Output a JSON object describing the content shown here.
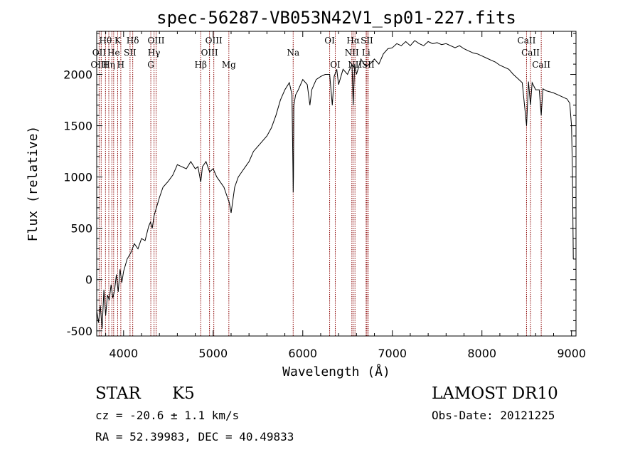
{
  "chart_data": {
    "type": "line",
    "title": "spec-56287-VB053N42V1_sp01-227.fits",
    "xlabel": "Wavelength (Å)",
    "ylabel": "Flux (relative)",
    "xlim": [
      3700,
      9050
    ],
    "ylim": [
      -550,
      2420
    ],
    "x_ticks": [
      4000,
      5000,
      6000,
      7000,
      8000,
      9000
    ],
    "y_ticks": [
      -500,
      0,
      500,
      1000,
      1500,
      2000
    ],
    "grid": false,
    "series": [
      {
        "color": "#000000",
        "x": [
          3700,
          3720,
          3740,
          3760,
          3780,
          3800,
          3820,
          3840,
          3860,
          3880,
          3900,
          3920,
          3940,
          3960,
          3980,
          4000,
          4040,
          4080,
          4120,
          4160,
          4200,
          4240,
          4280,
          4300,
          4320,
          4340,
          4360,
          4400,
          4440,
          4500,
          4550,
          4600,
          4650,
          4700,
          4750,
          4800,
          4830,
          4861,
          4880,
          4920,
          4960,
          5000,
          5040,
          5080,
          5120,
          5160,
          5180,
          5200,
          5240,
          5280,
          5320,
          5360,
          5400,
          5450,
          5500,
          5550,
          5600,
          5650,
          5700,
          5750,
          5800,
          5850,
          5880,
          5890,
          5893,
          5896,
          5900,
          5920,
          5950,
          6000,
          6050,
          6080,
          6100,
          6150,
          6200,
          6250,
          6300,
          6330,
          6350,
          6380,
          6400,
          6450,
          6500,
          6550,
          6563,
          6580,
          6600,
          6650,
          6700,
          6750,
          6800,
          6850,
          6900,
          6950,
          7000,
          7050,
          7100,
          7150,
          7200,
          7250,
          7300,
          7350,
          7400,
          7450,
          7500,
          7550,
          7600,
          7650,
          7700,
          7750,
          7800,
          7850,
          7900,
          7950,
          8000,
          8050,
          8100,
          8150,
          8200,
          8250,
          8300,
          8350,
          8400,
          8450,
          8498,
          8520,
          8542,
          8560,
          8600,
          8640,
          8662,
          8680,
          8720,
          8760,
          8800,
          8850,
          8900,
          8950,
          8980,
          9000,
          9010,
          9020
        ],
        "y": [
          -300,
          -420,
          -250,
          -480,
          -100,
          -350,
          -150,
          -200,
          -50,
          -180,
          -100,
          50,
          -120,
          100,
          -30,
          80,
          200,
          260,
          350,
          300,
          400,
          380,
          520,
          560,
          500,
          620,
          680,
          800,
          900,
          960,
          1020,
          1120,
          1100,
          1080,
          1150,
          1080,
          1100,
          950,
          1100,
          1150,
          1050,
          1080,
          1000,
          950,
          900,
          800,
          750,
          650,
          900,
          1000,
          1050,
          1100,
          1150,
          1250,
          1300,
          1350,
          1400,
          1480,
          1600,
          1750,
          1850,
          1920,
          1800,
          1100,
          850,
          1000,
          1700,
          1800,
          1850,
          1950,
          1900,
          1700,
          1850,
          1950,
          1980,
          2000,
          2000,
          1700,
          1980,
          2050,
          1900,
          2050,
          2000,
          2100,
          1700,
          2100,
          2000,
          2150,
          2080,
          2100,
          2150,
          2100,
          2200,
          2250,
          2260,
          2300,
          2280,
          2320,
          2280,
          2330,
          2300,
          2280,
          2320,
          2300,
          2310,
          2290,
          2300,
          2280,
          2260,
          2280,
          2250,
          2230,
          2210,
          2200,
          2180,
          2160,
          2140,
          2120,
          2090,
          2070,
          2050,
          2000,
          1960,
          1920,
          1500,
          1930,
          1700,
          1920,
          1850,
          1850,
          1600,
          1860,
          1840,
          1830,
          1820,
          1800,
          1780,
          1760,
          1720,
          1500,
          1050,
          200
        ]
      }
    ],
    "line_labels": [
      {
        "text": "Hθ",
        "x": 3798,
        "row": 1
      },
      {
        "text": "OII",
        "x": 3727,
        "row": 2
      },
      {
        "text": "OIII",
        "x": 3727,
        "row": 3
      },
      {
        "text": "K",
        "x": 3934,
        "row": 1
      },
      {
        "text": "He",
        "x": 3889,
        "row": 2
      },
      {
        "text": "Hη",
        "x": 3835,
        "row": 3
      },
      {
        "text": "Hδ",
        "x": 4102,
        "row": 1
      },
      {
        "text": "SII",
        "x": 4072,
        "row": 2
      },
      {
        "text": "H",
        "x": 3969,
        "row": 3
      },
      {
        "text": "OIII",
        "x": 4363,
        "row": 1
      },
      {
        "text": "Hγ",
        "x": 4340,
        "row": 2
      },
      {
        "text": "G",
        "x": 4304,
        "row": 3
      },
      {
        "text": "OIII",
        "x": 5007,
        "row": 1
      },
      {
        "text": "OIII",
        "x": 4959,
        "row": 2
      },
      {
        "text": "Hβ",
        "x": 4861,
        "row": 3
      },
      {
        "text": "Mg",
        "x": 5175,
        "row": 3
      },
      {
        "text": "Na",
        "x": 5893,
        "row": 2
      },
      {
        "text": "OI",
        "x": 6300,
        "row": 1
      },
      {
        "text": "OI",
        "x": 6363,
        "row": 3
      },
      {
        "text": "Hα",
        "x": 6563,
        "row": 1
      },
      {
        "text": "SII",
        "x": 6716,
        "row": 1
      },
      {
        "text": "NII",
        "x": 6548,
        "row": 2
      },
      {
        "text": "Li",
        "x": 6707,
        "row": 2
      },
      {
        "text": "NII",
        "x": 6583,
        "row": 3
      },
      {
        "text": "SII",
        "x": 6731,
        "row": 3
      },
      {
        "text": "CaII",
        "x": 8498,
        "row": 1
      },
      {
        "text": "CaII",
        "x": 8542,
        "row": 2
      },
      {
        "text": "CaII",
        "x": 8662,
        "row": 3
      }
    ],
    "line_markers": [
      3727,
      3750,
      3798,
      3835,
      3869,
      3889,
      3934,
      3969,
      4072,
      4102,
      4304,
      4340,
      4363,
      4861,
      4959,
      5007,
      5175,
      5893,
      6300,
      6363,
      6548,
      6563,
      6583,
      6707,
      6716,
      6731,
      8498,
      8542,
      8662
    ]
  },
  "footer": {
    "object_class": "STAR",
    "subclass": "K5",
    "survey": "LAMOST DR10",
    "redshift": "cz = -20.6 ± 1.1 km/s",
    "obs_date": "Obs-Date: 20121225",
    "coords": "RA =  52.39983, DEC =  40.49833"
  },
  "colors": {
    "spectrum": "#000000",
    "line_marker": "#8b0000",
    "frame": "#000000",
    "background": "#ffffff"
  }
}
